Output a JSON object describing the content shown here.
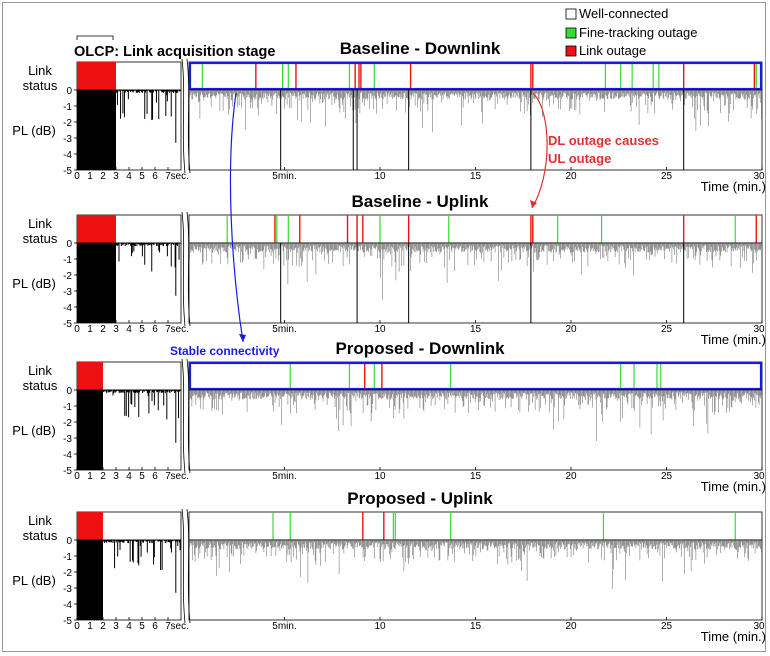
{
  "chart_data": [
    {
      "type": "line",
      "title": "Baseline - Downlink",
      "panel_key": "bd",
      "acq_end_s": 3,
      "highlight_box": true,
      "outage_green_min": [
        0.7,
        4.9,
        5.2,
        8.4,
        9.7,
        21.8,
        22.6,
        23.2,
        24.3,
        24.6,
        29.7
      ],
      "outage_red_min": [
        3.5,
        5.6,
        8.7,
        8.9,
        9.0,
        11.6,
        17.9,
        18.0,
        25.9,
        29.6
      ],
      "deep_drops_min": [
        4.8,
        8.6,
        8.8,
        11.5,
        17.9,
        25.9
      ]
    },
    {
      "type": "line",
      "title": "Baseline - Uplink",
      "panel_key": "bu",
      "acq_end_s": 3,
      "highlight_box": false,
      "outage_green_min": [
        2.0,
        4.6,
        5.2,
        10.0,
        13.6,
        19.3,
        21.6,
        28.6
      ],
      "outage_red_min": [
        4.5,
        5.8,
        8.3,
        8.8,
        9.1,
        11.5,
        17.9,
        18.0,
        25.9,
        29.7
      ],
      "deep_drops_min": [
        4.8,
        8.8,
        11.5,
        17.9,
        25.9
      ]
    },
    {
      "type": "line",
      "title": "Proposed - Downlink",
      "panel_key": "pd",
      "acq_end_s": 2,
      "highlight_box": true,
      "outage_green_min": [
        5.3,
        8.4,
        9.7,
        13.7,
        22.6,
        23.3,
        24.5,
        24.7
      ],
      "outage_red_min": [
        9.2,
        10.1
      ],
      "deep_drops_min": []
    },
    {
      "type": "line",
      "title": "Proposed - Uplink",
      "panel_key": "pu",
      "acq_end_s": 2,
      "highlight_box": false,
      "outage_green_min": [
        4.4,
        5.3,
        10.7,
        10.8,
        13.7,
        21.7,
        28.6
      ],
      "outage_red_min": [
        9.1,
        10.2
      ],
      "deep_drops_min": []
    }
  ],
  "axes": {
    "left_ticks": [
      "0",
      "1",
      "2",
      "3",
      "4",
      "5",
      "6",
      "7"
    ],
    "left_unit": "sec.",
    "right_ticks_min": [
      5,
      10,
      15,
      20,
      25,
      30
    ],
    "right_tick_labels": [
      "5min.",
      "10",
      "15",
      "20",
      "25",
      "30"
    ],
    "x_label": "Time (min.)",
    "y_label": "PL (dB)",
    "status_label_1": "Link",
    "status_label_2": "status",
    "y_ticks": [
      "0",
      "-1",
      "-2",
      "-3",
      "-4",
      "-5"
    ],
    "left_xlim_s": [
      0,
      8
    ],
    "right_xlim_min": [
      0,
      30
    ],
    "ylim_db": [
      -5,
      0
    ]
  },
  "legend": {
    "items": [
      {
        "label": "Well-connected",
        "color": "#ffffff"
      },
      {
        "label": "Fine-tracking outage",
        "color": "#33dd33"
      },
      {
        "label": "Link outage",
        "color": "#ee1111"
      }
    ]
  },
  "annotations": {
    "olcp": "OLCP: Link acquisition stage",
    "dl_outage_1": "DL outage causes",
    "dl_outage_2": "UL outage",
    "stable": "Stable connectivity"
  },
  "colors": {
    "green": "#33dd33",
    "red": "#ee1111",
    "blue": "#1a1ae6",
    "anno_red": "#e03030"
  }
}
